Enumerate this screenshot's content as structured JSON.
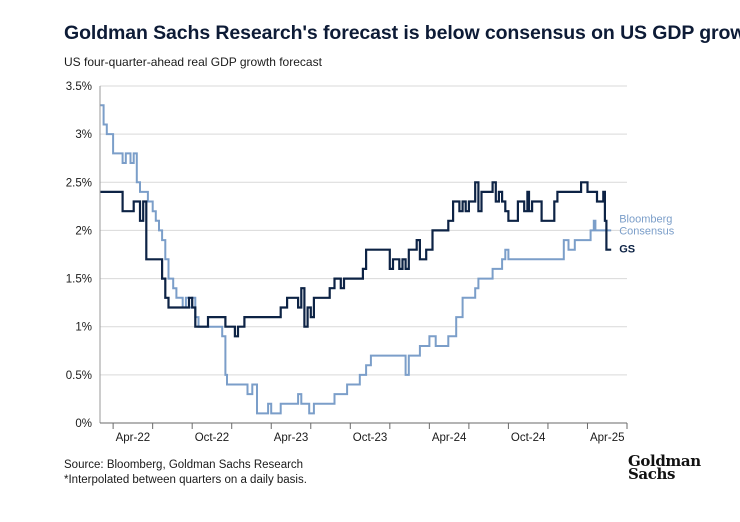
{
  "chart_data": {
    "type": "line",
    "title": "Goldman Sachs Research's forecast is below consensus on US GDP growth",
    "subtitle": "US four-quarter-ahead real GDP growth forecast",
    "xlabel": "",
    "ylabel": "",
    "xlim": [
      2021.917,
      2025.25
    ],
    "ylim": [
      0,
      3.5
    ],
    "x_ticks": [
      {
        "value": 2022.25,
        "label": "Apr-22"
      },
      {
        "value": 2022.75,
        "label": "Oct-22"
      },
      {
        "value": 2023.25,
        "label": "Apr-23"
      },
      {
        "value": 2023.75,
        "label": "Oct-23"
      },
      {
        "value": 2024.25,
        "label": "Apr-24"
      },
      {
        "value": 2024.75,
        "label": "Oct-24"
      },
      {
        "value": 2025.25,
        "label": "Apr-25"
      }
    ],
    "y_ticks": [
      {
        "value": 0,
        "label": "0%"
      },
      {
        "value": 0.5,
        "label": "0.5%"
      },
      {
        "value": 1,
        "label": "1%"
      },
      {
        "value": 1.5,
        "label": "1.5%"
      },
      {
        "value": 2,
        "label": "2%"
      },
      {
        "value": 2.5,
        "label": "2.5%"
      },
      {
        "value": 3,
        "label": "3%"
      },
      {
        "value": 3.5,
        "label": "3.5%"
      }
    ],
    "series": [
      {
        "name": "Bloomberg Consensus",
        "label_lines": [
          "Bloomberg",
          "Consensus"
        ],
        "color": "#7b9ec9",
        "points": [
          [
            2021.917,
            3.3
          ],
          [
            2021.94,
            3.3
          ],
          [
            2021.94,
            3.1
          ],
          [
            2021.96,
            3.1
          ],
          [
            2021.96,
            3.0
          ],
          [
            2022.0,
            3.0
          ],
          [
            2022.0,
            2.8
          ],
          [
            2022.06,
            2.8
          ],
          [
            2022.06,
            2.7
          ],
          [
            2022.08,
            2.7
          ],
          [
            2022.08,
            2.8
          ],
          [
            2022.11,
            2.8
          ],
          [
            2022.11,
            2.7
          ],
          [
            2022.13,
            2.7
          ],
          [
            2022.13,
            2.8
          ],
          [
            2022.15,
            2.8
          ],
          [
            2022.15,
            2.5
          ],
          [
            2022.17,
            2.5
          ],
          [
            2022.17,
            2.4
          ],
          [
            2022.22,
            2.4
          ],
          [
            2022.22,
            2.3
          ],
          [
            2022.25,
            2.3
          ],
          [
            2022.25,
            2.2
          ],
          [
            2022.27,
            2.2
          ],
          [
            2022.27,
            2.1
          ],
          [
            2022.29,
            2.1
          ],
          [
            2022.29,
            2.0
          ],
          [
            2022.31,
            2.0
          ],
          [
            2022.31,
            1.9
          ],
          [
            2022.33,
            1.9
          ],
          [
            2022.33,
            1.7
          ],
          [
            2022.35,
            1.7
          ],
          [
            2022.35,
            1.5
          ],
          [
            2022.38,
            1.5
          ],
          [
            2022.38,
            1.4
          ],
          [
            2022.4,
            1.4
          ],
          [
            2022.4,
            1.3
          ],
          [
            2022.44,
            1.3
          ],
          [
            2022.44,
            1.2
          ],
          [
            2022.46,
            1.2
          ],
          [
            2022.46,
            1.3
          ],
          [
            2022.48,
            1.3
          ],
          [
            2022.48,
            1.2
          ],
          [
            2022.5,
            1.2
          ],
          [
            2022.5,
            1.3
          ],
          [
            2022.52,
            1.3
          ],
          [
            2022.52,
            1.1
          ],
          [
            2022.54,
            1.1
          ],
          [
            2022.54,
            1.0
          ],
          [
            2022.69,
            1.0
          ],
          [
            2022.69,
            0.9
          ],
          [
            2022.71,
            0.9
          ],
          [
            2022.71,
            0.5
          ],
          [
            2022.72,
            0.5
          ],
          [
            2022.72,
            0.4
          ],
          [
            2022.85,
            0.4
          ],
          [
            2022.85,
            0.3
          ],
          [
            2022.88,
            0.3
          ],
          [
            2022.88,
            0.4
          ],
          [
            2022.91,
            0.4
          ],
          [
            2022.91,
            0.1
          ],
          [
            2022.98,
            0.1
          ],
          [
            2022.98,
            0.2
          ],
          [
            2023.0,
            0.2
          ],
          [
            2023.0,
            0.1
          ],
          [
            2023.06,
            0.1
          ],
          [
            2023.06,
            0.2
          ],
          [
            2023.17,
            0.2
          ],
          [
            2023.17,
            0.3
          ],
          [
            2023.19,
            0.3
          ],
          [
            2023.19,
            0.2
          ],
          [
            2023.24,
            0.2
          ],
          [
            2023.24,
            0.1
          ],
          [
            2023.27,
            0.1
          ],
          [
            2023.27,
            0.2
          ],
          [
            2023.4,
            0.2
          ],
          [
            2023.4,
            0.3
          ],
          [
            2023.48,
            0.3
          ],
          [
            2023.48,
            0.4
          ],
          [
            2023.56,
            0.4
          ],
          [
            2023.56,
            0.5
          ],
          [
            2023.6,
            0.5
          ],
          [
            2023.6,
            0.6
          ],
          [
            2023.63,
            0.6
          ],
          [
            2023.63,
            0.7
          ],
          [
            2023.85,
            0.7
          ],
          [
            2023.85,
            0.5
          ],
          [
            2023.87,
            0.5
          ],
          [
            2023.87,
            0.7
          ],
          [
            2023.94,
            0.7
          ],
          [
            2023.94,
            0.8
          ],
          [
            2024.0,
            0.8
          ],
          [
            2024.0,
            0.9
          ],
          [
            2024.04,
            0.9
          ],
          [
            2024.04,
            0.8
          ],
          [
            2024.12,
            0.8
          ],
          [
            2024.12,
            0.9
          ],
          [
            2024.17,
            0.9
          ],
          [
            2024.17,
            1.1
          ],
          [
            2024.21,
            1.1
          ],
          [
            2024.21,
            1.3
          ],
          [
            2024.29,
            1.3
          ],
          [
            2024.29,
            1.4
          ],
          [
            2024.31,
            1.4
          ],
          [
            2024.31,
            1.5
          ],
          [
            2024.4,
            1.5
          ],
          [
            2024.4,
            1.6
          ],
          [
            2024.46,
            1.6
          ],
          [
            2024.46,
            1.7
          ],
          [
            2024.48,
            1.7
          ],
          [
            2024.48,
            1.8
          ],
          [
            2024.5,
            1.8
          ],
          [
            2024.5,
            1.7
          ],
          [
            2024.85,
            1.7
          ],
          [
            2024.85,
            1.9
          ],
          [
            2024.88,
            1.9
          ],
          [
            2024.88,
            1.8
          ],
          [
            2024.92,
            1.8
          ],
          [
            2024.92,
            1.9
          ],
          [
            2025.02,
            1.9
          ],
          [
            2025.02,
            2.0
          ],
          [
            2025.04,
            2.0
          ],
          [
            2025.04,
            2.1
          ],
          [
            2025.05,
            2.1
          ],
          [
            2025.05,
            2.0
          ],
          [
            2025.15,
            2.0
          ]
        ]
      },
      {
        "name": "GS",
        "label_lines": [
          "GS"
        ],
        "color": "#0d2345",
        "points": [
          [
            2021.917,
            2.4
          ],
          [
            2022.06,
            2.4
          ],
          [
            2022.06,
            2.2
          ],
          [
            2022.13,
            2.2
          ],
          [
            2022.13,
            2.3
          ],
          [
            2022.17,
            2.3
          ],
          [
            2022.17,
            2.1
          ],
          [
            2022.19,
            2.1
          ],
          [
            2022.19,
            2.3
          ],
          [
            2022.21,
            2.3
          ],
          [
            2022.21,
            1.7
          ],
          [
            2022.31,
            1.7
          ],
          [
            2022.31,
            1.5
          ],
          [
            2022.33,
            1.5
          ],
          [
            2022.33,
            1.3
          ],
          [
            2022.35,
            1.3
          ],
          [
            2022.35,
            1.2
          ],
          [
            2022.48,
            1.2
          ],
          [
            2022.48,
            1.3
          ],
          [
            2022.5,
            1.3
          ],
          [
            2022.5,
            1.2
          ],
          [
            2022.52,
            1.2
          ],
          [
            2022.52,
            1.0
          ],
          [
            2022.6,
            1.0
          ],
          [
            2022.6,
            1.1
          ],
          [
            2022.71,
            1.1
          ],
          [
            2022.71,
            1.0
          ],
          [
            2022.77,
            1.0
          ],
          [
            2022.77,
            0.9
          ],
          [
            2022.79,
            0.9
          ],
          [
            2022.79,
            1.0
          ],
          [
            2022.83,
            1.0
          ],
          [
            2022.83,
            1.1
          ],
          [
            2023.06,
            1.1
          ],
          [
            2023.06,
            1.2
          ],
          [
            2023.1,
            1.2
          ],
          [
            2023.1,
            1.3
          ],
          [
            2023.17,
            1.3
          ],
          [
            2023.17,
            1.2
          ],
          [
            2023.19,
            1.2
          ],
          [
            2023.19,
            1.4
          ],
          [
            2023.21,
            1.4
          ],
          [
            2023.21,
            1.0
          ],
          [
            2023.23,
            1.0
          ],
          [
            2023.23,
            1.2
          ],
          [
            2023.25,
            1.2
          ],
          [
            2023.25,
            1.1
          ],
          [
            2023.27,
            1.1
          ],
          [
            2023.27,
            1.3
          ],
          [
            2023.37,
            1.3
          ],
          [
            2023.37,
            1.4
          ],
          [
            2023.4,
            1.4
          ],
          [
            2023.4,
            1.5
          ],
          [
            2023.44,
            1.5
          ],
          [
            2023.44,
            1.4
          ],
          [
            2023.46,
            1.4
          ],
          [
            2023.46,
            1.5
          ],
          [
            2023.58,
            1.5
          ],
          [
            2023.58,
            1.6
          ],
          [
            2023.6,
            1.6
          ],
          [
            2023.6,
            1.8
          ],
          [
            2023.75,
            1.8
          ],
          [
            2023.75,
            1.6
          ],
          [
            2023.77,
            1.6
          ],
          [
            2023.77,
            1.7
          ],
          [
            2023.81,
            1.7
          ],
          [
            2023.81,
            1.6
          ],
          [
            2023.83,
            1.6
          ],
          [
            2023.83,
            1.7
          ],
          [
            2023.85,
            1.7
          ],
          [
            2023.85,
            1.6
          ],
          [
            2023.87,
            1.6
          ],
          [
            2023.87,
            1.8
          ],
          [
            2023.92,
            1.8
          ],
          [
            2023.92,
            1.9
          ],
          [
            2023.94,
            1.9
          ],
          [
            2023.94,
            1.7
          ],
          [
            2023.98,
            1.7
          ],
          [
            2023.98,
            1.8
          ],
          [
            2024.02,
            1.8
          ],
          [
            2024.02,
            2.0
          ],
          [
            2024.12,
            2.0
          ],
          [
            2024.12,
            2.1
          ],
          [
            2024.15,
            2.1
          ],
          [
            2024.15,
            2.3
          ],
          [
            2024.19,
            2.3
          ],
          [
            2024.19,
            2.2
          ],
          [
            2024.21,
            2.2
          ],
          [
            2024.21,
            2.3
          ],
          [
            2024.23,
            2.3
          ],
          [
            2024.23,
            2.2
          ],
          [
            2024.25,
            2.2
          ],
          [
            2024.25,
            2.3
          ],
          [
            2024.29,
            2.3
          ],
          [
            2024.29,
            2.5
          ],
          [
            2024.31,
            2.5
          ],
          [
            2024.31,
            2.2
          ],
          [
            2024.33,
            2.2
          ],
          [
            2024.33,
            2.4
          ],
          [
            2024.4,
            2.4
          ],
          [
            2024.4,
            2.5
          ],
          [
            2024.42,
            2.5
          ],
          [
            2024.42,
            2.3
          ],
          [
            2024.44,
            2.3
          ],
          [
            2024.44,
            2.4
          ],
          [
            2024.46,
            2.4
          ],
          [
            2024.46,
            2.3
          ],
          [
            2024.48,
            2.3
          ],
          [
            2024.48,
            2.2
          ],
          [
            2024.5,
            2.2
          ],
          [
            2024.5,
            2.1
          ],
          [
            2024.56,
            2.1
          ],
          [
            2024.56,
            2.3
          ],
          [
            2024.6,
            2.3
          ],
          [
            2024.6,
            2.2
          ],
          [
            2024.62,
            2.2
          ],
          [
            2024.62,
            2.4
          ],
          [
            2024.63,
            2.4
          ],
          [
            2024.63,
            2.2
          ],
          [
            2024.65,
            2.2
          ],
          [
            2024.65,
            2.3
          ],
          [
            2024.71,
            2.3
          ],
          [
            2024.71,
            2.1
          ],
          [
            2024.79,
            2.1
          ],
          [
            2024.79,
            2.3
          ],
          [
            2024.81,
            2.3
          ],
          [
            2024.81,
            2.4
          ],
          [
            2024.96,
            2.4
          ],
          [
            2024.96,
            2.5
          ],
          [
            2025.0,
            2.5
          ],
          [
            2025.0,
            2.4
          ],
          [
            2025.06,
            2.4
          ],
          [
            2025.06,
            2.3
          ],
          [
            2025.1,
            2.3
          ],
          [
            2025.1,
            2.4
          ],
          [
            2025.11,
            2.4
          ],
          [
            2025.11,
            2.1
          ],
          [
            2025.12,
            2.1
          ],
          [
            2025.12,
            1.8
          ],
          [
            2025.15,
            1.8
          ]
        ]
      }
    ],
    "grid": "horizontal"
  },
  "footer": {
    "source": "Source: Bloomberg, Goldman Sachs Research",
    "note": "*Interpolated between quarters on a daily basis."
  },
  "logo": {
    "line1": "Goldman",
    "line2": "Sachs"
  }
}
